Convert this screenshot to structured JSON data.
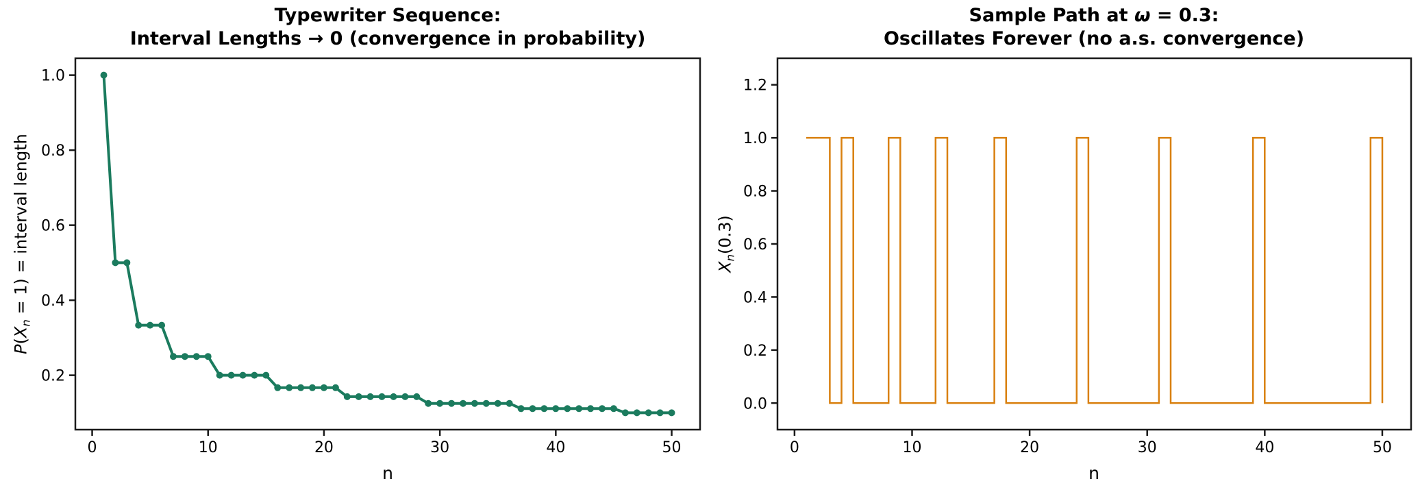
{
  "figure": {
    "background": "#ffffff",
    "spine_color": "#1a1a1a",
    "text_color": "#000000"
  },
  "chart_data": [
    {
      "type": "line",
      "title": "Typewriter Sequence:\nInterval Lengths → 0 (convergence in probability)",
      "title_segments": [
        [
          {
            "t": "Typewriter Sequence:"
          }
        ],
        [
          {
            "t": "Interval Lengths → 0 (convergence in probability)"
          }
        ]
      ],
      "xlabel": "n",
      "ylabel": "P(Xn = 1) = interval length",
      "ylabel_segments": [
        {
          "t": "P",
          "i": true
        },
        {
          "t": "("
        },
        {
          "t": "X",
          "i": true
        },
        {
          "t": "n",
          "i": true,
          "sub": true
        },
        {
          "t": " = 1)  =  interval length"
        }
      ],
      "x": [
        1,
        2,
        3,
        4,
        5,
        6,
        7,
        8,
        9,
        10,
        11,
        12,
        13,
        14,
        15,
        16,
        17,
        18,
        19,
        20,
        21,
        22,
        23,
        24,
        25,
        26,
        27,
        28,
        29,
        30,
        31,
        32,
        33,
        34,
        35,
        36,
        37,
        38,
        39,
        40,
        41,
        42,
        43,
        44,
        45,
        46,
        47,
        48,
        49,
        50
      ],
      "y": [
        1.0,
        0.5,
        0.5,
        0.3333,
        0.3333,
        0.3333,
        0.25,
        0.25,
        0.25,
        0.25,
        0.2,
        0.2,
        0.2,
        0.2,
        0.2,
        0.1667,
        0.1667,
        0.1667,
        0.1667,
        0.1667,
        0.1667,
        0.1429,
        0.1429,
        0.1429,
        0.1429,
        0.1429,
        0.1429,
        0.1429,
        0.125,
        0.125,
        0.125,
        0.125,
        0.125,
        0.125,
        0.125,
        0.125,
        0.1111,
        0.1111,
        0.1111,
        0.1111,
        0.1111,
        0.1111,
        0.1111,
        0.1111,
        0.1111,
        0.1,
        0.1,
        0.1,
        0.1,
        0.1
      ],
      "xlim": [
        -1.45,
        52.45
      ],
      "ylim": [
        0.055,
        1.045
      ],
      "xticks": [
        0,
        10,
        20,
        30,
        40,
        50
      ],
      "xtick_labels": [
        "0",
        "10",
        "20",
        "30",
        "40",
        "50"
      ],
      "yticks": [
        0.2,
        0.4,
        0.6,
        0.8,
        1.0
      ],
      "ytick_labels": [
        "0.2",
        "0.4",
        "0.6",
        "0.8",
        "1.0"
      ],
      "color": "#1b7b5e",
      "marker": "circle",
      "drawstyle": "default",
      "grid": false,
      "legend": null
    },
    {
      "type": "line",
      "title": "Sample Path at ω = 0.3:\nOscillates Forever (no a.s. convergence)",
      "title_segments": [
        [
          {
            "t": "Sample Path at "
          },
          {
            "t": "ω",
            "i": true
          },
          {
            "t": " = 0.3:"
          }
        ],
        [
          {
            "t": "Oscillates Forever (no a.s. convergence)"
          }
        ]
      ],
      "xlabel": "n",
      "ylabel": "Xn(0.3)",
      "ylabel_segments": [
        {
          "t": "X",
          "i": true
        },
        {
          "t": "n",
          "i": true,
          "sub": true
        },
        {
          "t": "(0.3)"
        }
      ],
      "x": [
        1,
        2,
        3,
        4,
        5,
        6,
        7,
        8,
        9,
        10,
        11,
        12,
        13,
        14,
        15,
        16,
        17,
        18,
        19,
        20,
        21,
        22,
        23,
        24,
        25,
        26,
        27,
        28,
        29,
        30,
        31,
        32,
        33,
        34,
        35,
        36,
        37,
        38,
        39,
        40,
        41,
        42,
        43,
        44,
        45,
        46,
        47,
        48,
        49,
        50
      ],
      "y": [
        1,
        1,
        0,
        1,
        0,
        0,
        0,
        1,
        0,
        0,
        0,
        1,
        0,
        0,
        0,
        0,
        1,
        0,
        0,
        0,
        0,
        0,
        0,
        1,
        0,
        0,
        0,
        0,
        0,
        0,
        1,
        0,
        0,
        0,
        0,
        0,
        0,
        0,
        1,
        0,
        0,
        0,
        0,
        0,
        0,
        0,
        0,
        0,
        1,
        0
      ],
      "ones_at_n": [
        1,
        2,
        4,
        8,
        12,
        17,
        24,
        31,
        39,
        49
      ],
      "xlim": [
        -1.45,
        52.45
      ],
      "ylim": [
        -0.1,
        1.3
      ],
      "xticks": [
        0,
        10,
        20,
        30,
        40,
        50
      ],
      "xtick_labels": [
        "0",
        "10",
        "20",
        "30",
        "40",
        "50"
      ],
      "yticks": [
        0.0,
        0.2,
        0.4,
        0.6,
        0.8,
        1.0,
        1.2
      ],
      "ytick_labels": [
        "0.0",
        "0.2",
        "0.4",
        "0.6",
        "0.8",
        "1.0",
        "1.2"
      ],
      "color": "#d9800f",
      "marker": null,
      "drawstyle": "steps-post",
      "grid": false,
      "legend": null
    }
  ]
}
